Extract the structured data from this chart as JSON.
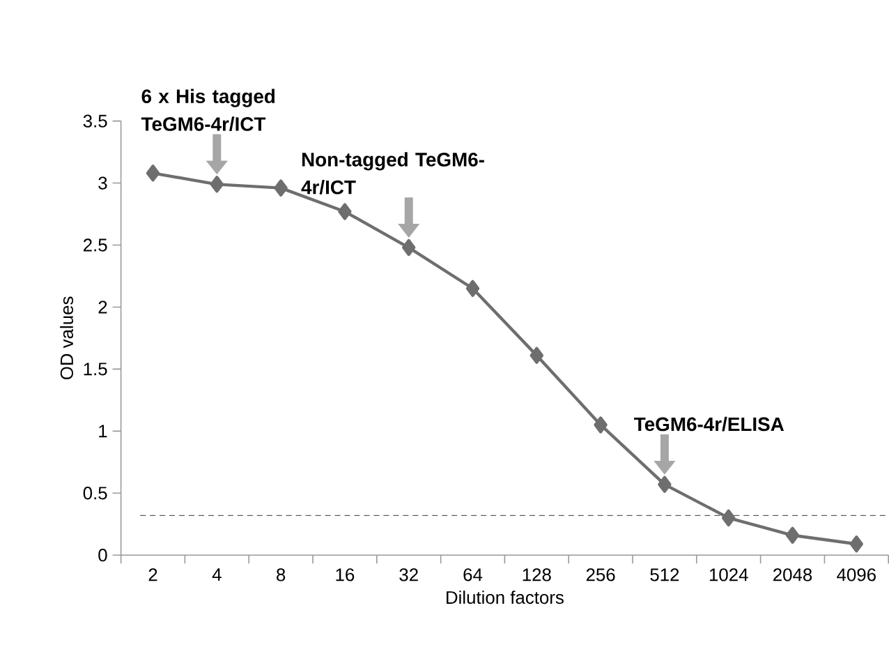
{
  "chart_data": {
    "type": "line",
    "xlabel": "Dilution factors",
    "ylabel": "OD values",
    "categories": [
      "2",
      "4",
      "8",
      "16",
      "32",
      "64",
      "128",
      "256",
      "512",
      "1024",
      "2048",
      "4096"
    ],
    "values": [
      3.08,
      2.99,
      2.96,
      2.77,
      2.48,
      2.15,
      1.61,
      1.05,
      0.57,
      0.3,
      0.16,
      0.09
    ],
    "color": "#6e6e6e",
    "marker": "diamond",
    "ylim": [
      0,
      3.5
    ],
    "yticks": [
      0,
      0.5,
      1,
      1.5,
      2,
      2.5,
      3,
      3.5
    ],
    "ref_lines": [
      {
        "axis": "y",
        "value": 0.32,
        "color": "#555555",
        "line_style": "dashed"
      }
    ],
    "annotations": [
      {
        "text": "6 x His tagged TeGM6-4r/ICT",
        "x": "4",
        "y": 2.99
      },
      {
        "text": "Non-tagged TeGM6-4r/ICT",
        "x": "32",
        "y": 2.48
      },
      {
        "text": "TeGM6-4r/ELISA",
        "x": "512",
        "y": 0.57
      }
    ]
  }
}
